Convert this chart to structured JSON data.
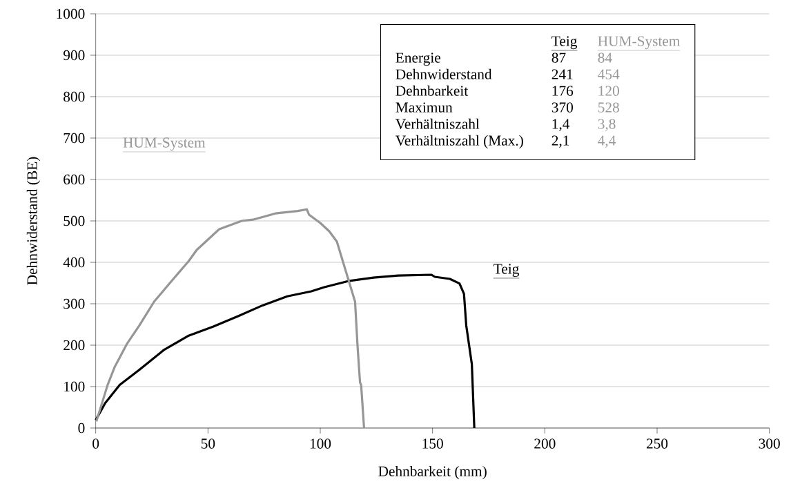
{
  "chart_data": {
    "type": "line",
    "xlabel": "Dehnbarkeit (mm)",
    "ylabel": "Dehnwiderstand (BE)",
    "xlim": [
      0,
      300
    ],
    "xticks": [
      0,
      50,
      100,
      150,
      200,
      250,
      300
    ],
    "ylim": [
      0,
      1000
    ],
    "yticks": [
      0,
      100,
      200,
      300,
      400,
      500,
      600,
      700,
      800,
      900,
      1000
    ],
    "grid": "y",
    "legend": false,
    "marker": "none",
    "line_style": "solid",
    "series": [
      {
        "name": "Teig",
        "color": "#000000",
        "x": [
          0,
          4.2,
          10.7,
          19.5,
          30.5,
          41.4,
          52.4,
          63.4,
          74.3,
          85.3,
          96,
          101.8,
          112.7,
          123.7,
          134.7,
          149.5,
          151,
          157.7,
          162,
          164,
          165,
          167.5,
          168.6
        ],
        "values": [
          19,
          60,
          104,
          141,
          189,
          223,
          245,
          270,
          296,
          318,
          330,
          340,
          355,
          363,
          368,
          370,
          365,
          360,
          349,
          324,
          248,
          154,
          0
        ]
      },
      {
        "name": "HUM-System",
        "color": "#969696",
        "x": [
          0.3,
          5.3,
          8.5,
          14,
          19.5,
          26,
          33.8,
          41.4,
          45,
          55,
          65,
          70,
          80,
          90,
          94,
          95,
          100,
          104,
          107.4,
          112.7,
          115.5,
          116.6,
          117.7,
          118.2,
          119.5
        ],
        "values": [
          16,
          104,
          148,
          204,
          248,
          305,
          355,
          403,
          430,
          480,
          500,
          503,
          518,
          524,
          528,
          515,
          495,
          475,
          450,
          355,
          305,
          198,
          110,
          104,
          0
        ]
      }
    ],
    "annotations": [
      "Teig",
      "HUM-System",
      "Energie",
      "87",
      "84",
      "Dehnwiderstand",
      "241",
      "454",
      "Dehnbarkeit",
      "176",
      "120",
      "Maximun",
      "370",
      "528",
      "Verhältniszahl",
      "1,4",
      "3,8",
      "Verhältniszahl (Max.)",
      "2,1",
      "4,4"
    ]
  }
}
